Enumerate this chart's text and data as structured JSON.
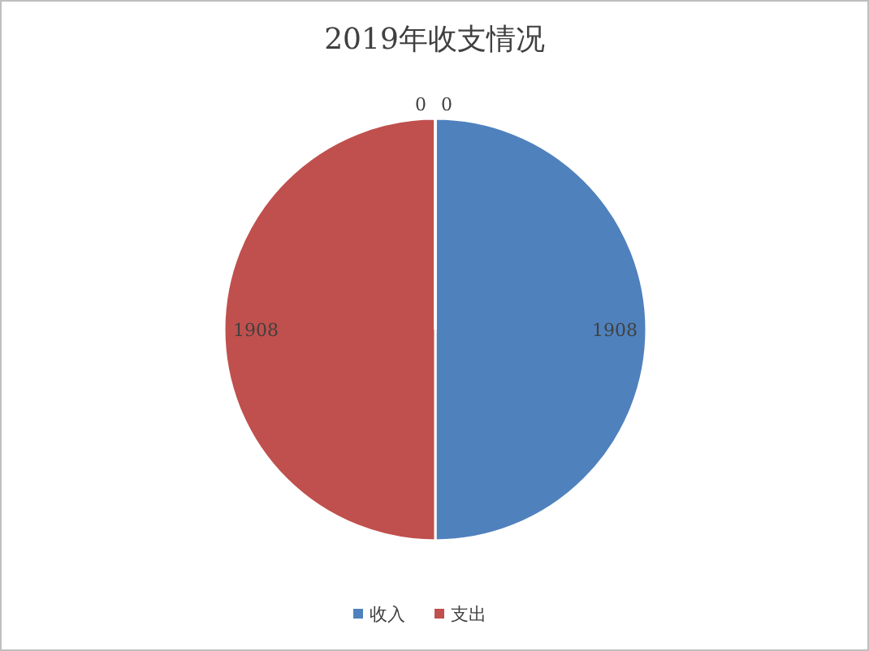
{
  "chart_data": {
    "type": "pie",
    "title": "2019年收支情况",
    "categories": [
      "收入",
      "支出",
      null,
      null
    ],
    "values": [
      1908,
      1908,
      0,
      0
    ],
    "colors": [
      "#4f81bd",
      "#c0504d",
      "#9bbb59",
      "#8064a2"
    ],
    "value_labels": [
      "1908",
      "1908",
      "0",
      "0"
    ],
    "legend": "bottom"
  }
}
